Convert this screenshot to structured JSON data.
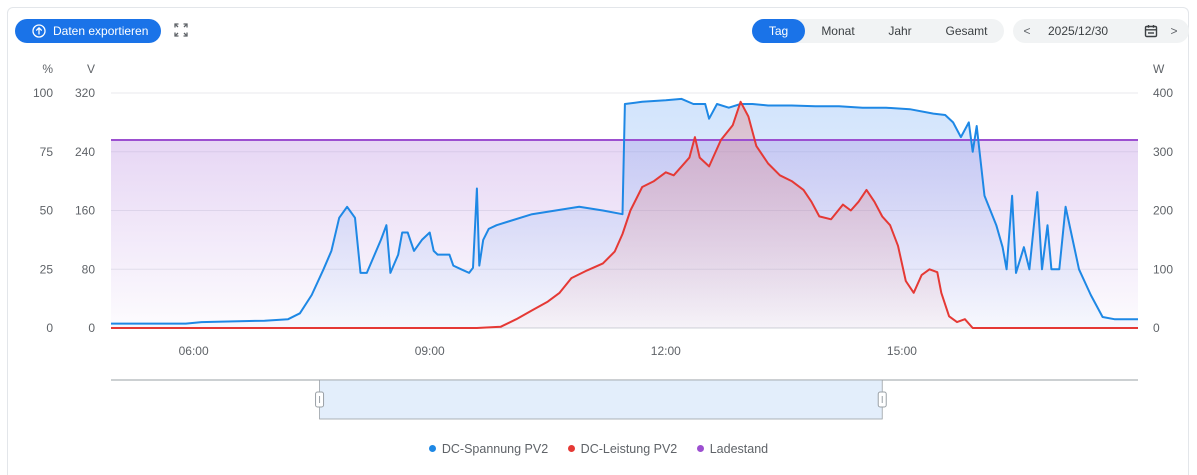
{
  "toolbar": {
    "export_label": "Daten exportieren",
    "periods": [
      "Tag",
      "Monat",
      "Jahr",
      "Gesamt"
    ],
    "active_period": "Tag",
    "date": "2025/12/30",
    "prev_symbol": "<",
    "next_symbol": ">"
  },
  "colors": {
    "accent": "#1a73e8",
    "voltage": "#1e88e5",
    "power": "#e53935",
    "soc": "#9c4fd0"
  },
  "chart_data": {
    "type": "line",
    "xlabel": "",
    "x_ticks": [
      "06:00",
      "09:00",
      "12:00",
      "15:00"
    ],
    "x_tick_hours": [
      6,
      9,
      12,
      15
    ],
    "x_range_hours": [
      4.95,
      18.0
    ],
    "axes": {
      "percent": {
        "unit": "%",
        "ticks": [
          0,
          25,
          50,
          75,
          100
        ],
        "range": [
          0,
          100
        ]
      },
      "voltage": {
        "unit": "V",
        "ticks": [
          0,
          80,
          160,
          240,
          320
        ],
        "range": [
          0,
          320
        ]
      },
      "power": {
        "unit": "W",
        "ticks": [
          0,
          100,
          200,
          300,
          400
        ],
        "range": [
          0,
          400
        ]
      }
    },
    "series": [
      {
        "name": "DC-Spannung PV2",
        "axis": "voltage",
        "fill": true,
        "points": [
          [
            4.95,
            6
          ],
          [
            5.5,
            6
          ],
          [
            5.9,
            6
          ],
          [
            6.1,
            8
          ],
          [
            6.5,
            9
          ],
          [
            6.9,
            10
          ],
          [
            7.2,
            12
          ],
          [
            7.35,
            20
          ],
          [
            7.5,
            45
          ],
          [
            7.65,
            80
          ],
          [
            7.75,
            105
          ],
          [
            7.85,
            150
          ],
          [
            7.95,
            165
          ],
          [
            8.05,
            150
          ],
          [
            8.12,
            75
          ],
          [
            8.2,
            75
          ],
          [
            8.3,
            100
          ],
          [
            8.38,
            120
          ],
          [
            8.45,
            140
          ],
          [
            8.5,
            75
          ],
          [
            8.6,
            100
          ],
          [
            8.65,
            130
          ],
          [
            8.72,
            130
          ],
          [
            8.8,
            105
          ],
          [
            8.9,
            120
          ],
          [
            9.0,
            130
          ],
          [
            9.05,
            105
          ],
          [
            9.1,
            100
          ],
          [
            9.25,
            100
          ],
          [
            9.3,
            85
          ],
          [
            9.4,
            80
          ],
          [
            9.5,
            75
          ],
          [
            9.55,
            82
          ],
          [
            9.6,
            190
          ],
          [
            9.63,
            85
          ],
          [
            9.68,
            120
          ],
          [
            9.75,
            135
          ],
          [
            9.85,
            140
          ],
          [
            10.0,
            145
          ],
          [
            10.3,
            155
          ],
          [
            10.6,
            160
          ],
          [
            10.9,
            165
          ],
          [
            11.2,
            160
          ],
          [
            11.45,
            155
          ],
          [
            11.48,
            305
          ],
          [
            11.7,
            308
          ],
          [
            12.0,
            310
          ],
          [
            12.2,
            312
          ],
          [
            12.35,
            305
          ],
          [
            12.5,
            305
          ],
          [
            12.55,
            285
          ],
          [
            12.65,
            305
          ],
          [
            12.8,
            300
          ],
          [
            12.95,
            305
          ],
          [
            13.1,
            305
          ],
          [
            13.3,
            303
          ],
          [
            13.6,
            303
          ],
          [
            13.9,
            302
          ],
          [
            14.2,
            302
          ],
          [
            14.5,
            300
          ],
          [
            14.8,
            300
          ],
          [
            15.1,
            298
          ],
          [
            15.4,
            292
          ],
          [
            15.55,
            290
          ],
          [
            15.65,
            280
          ],
          [
            15.75,
            260
          ],
          [
            15.85,
            280
          ],
          [
            15.9,
            240
          ],
          [
            15.95,
            275
          ],
          [
            16.05,
            180
          ],
          [
            16.2,
            140
          ],
          [
            16.28,
            110
          ],
          [
            16.33,
            80
          ],
          [
            16.4,
            180
          ],
          [
            16.45,
            75
          ],
          [
            16.55,
            110
          ],
          [
            16.62,
            80
          ],
          [
            16.72,
            185
          ],
          [
            16.78,
            80
          ],
          [
            16.85,
            140
          ],
          [
            16.9,
            80
          ],
          [
            17.0,
            80
          ],
          [
            17.08,
            165
          ],
          [
            17.15,
            130
          ],
          [
            17.25,
            80
          ],
          [
            17.4,
            45
          ],
          [
            17.55,
            15
          ],
          [
            17.7,
            12
          ],
          [
            18.0,
            12
          ]
        ]
      },
      {
        "name": "DC-Leistung PV2",
        "axis": "power",
        "fill": true,
        "points": [
          [
            4.95,
            0
          ],
          [
            9.3,
            0
          ],
          [
            9.6,
            0
          ],
          [
            9.9,
            2
          ],
          [
            10.1,
            15
          ],
          [
            10.3,
            30
          ],
          [
            10.5,
            45
          ],
          [
            10.65,
            60
          ],
          [
            10.8,
            85
          ],
          [
            11.0,
            98
          ],
          [
            11.2,
            110
          ],
          [
            11.35,
            130
          ],
          [
            11.45,
            160
          ],
          [
            11.55,
            200
          ],
          [
            11.7,
            240
          ],
          [
            11.85,
            250
          ],
          [
            12.0,
            265
          ],
          [
            12.1,
            260
          ],
          [
            12.2,
            275
          ],
          [
            12.3,
            290
          ],
          [
            12.37,
            325
          ],
          [
            12.43,
            290
          ],
          [
            12.55,
            275
          ],
          [
            12.7,
            320
          ],
          [
            12.85,
            345
          ],
          [
            12.95,
            385
          ],
          [
            13.05,
            360
          ],
          [
            13.15,
            310
          ],
          [
            13.3,
            280
          ],
          [
            13.45,
            260
          ],
          [
            13.6,
            250
          ],
          [
            13.75,
            235
          ],
          [
            13.85,
            215
          ],
          [
            13.95,
            190
          ],
          [
            14.1,
            185
          ],
          [
            14.25,
            210
          ],
          [
            14.35,
            200
          ],
          [
            14.45,
            215
          ],
          [
            14.55,
            235
          ],
          [
            14.65,
            215
          ],
          [
            14.75,
            190
          ],
          [
            14.85,
            175
          ],
          [
            14.95,
            140
          ],
          [
            15.05,
            80
          ],
          [
            15.15,
            60
          ],
          [
            15.25,
            90
          ],
          [
            15.35,
            100
          ],
          [
            15.45,
            95
          ],
          [
            15.5,
            60
          ],
          [
            15.6,
            20
          ],
          [
            15.7,
            10
          ],
          [
            15.8,
            15
          ],
          [
            15.9,
            0
          ],
          [
            18.0,
            0
          ]
        ]
      },
      {
        "name": "Ladestand",
        "axis": "percent",
        "fill": true,
        "points": [
          [
            4.95,
            80
          ],
          [
            18.0,
            80
          ]
        ]
      }
    ],
    "legend": [
      "DC-Spannung PV2",
      "DC-Leistung PV2",
      "Ladestand"
    ],
    "legend_position": "bottom",
    "zoom_window_hours": [
      7.6,
      14.75
    ]
  }
}
